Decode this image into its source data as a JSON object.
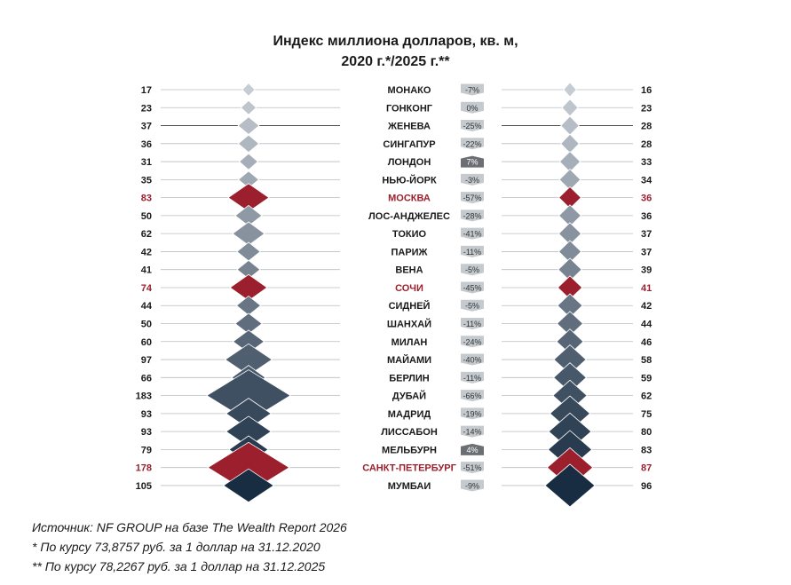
{
  "chart_data": {
    "type": "table",
    "title_line1": "Индекс миллиона долларов, кв. м,",
    "title_line2": "2020 г.*/2025 г.**",
    "highlight_color": "#9b1f2c",
    "rows": [
      {
        "city": "МОНАКО",
        "v2020": 17,
        "v2025": 16,
        "change": "-7%",
        "highlight": false,
        "positive": false
      },
      {
        "city": "ГОНКОНГ",
        "v2020": 23,
        "v2025": 23,
        "change": "0%",
        "highlight": false,
        "positive": false
      },
      {
        "city": "ЖЕНЕВА",
        "v2020": 37,
        "v2025": 28,
        "change": "-25%",
        "highlight": false,
        "positive": false
      },
      {
        "city": "СИНГАПУР",
        "v2020": 36,
        "v2025": 28,
        "change": "-22%",
        "highlight": false,
        "positive": false
      },
      {
        "city": "ЛОНДОН",
        "v2020": 31,
        "v2025": 33,
        "change": "7%",
        "highlight": false,
        "positive": true
      },
      {
        "city": "НЬЮ-ЙОРК",
        "v2020": 35,
        "v2025": 34,
        "change": "-3%",
        "highlight": false,
        "positive": false
      },
      {
        "city": "МОСКВА",
        "v2020": 83,
        "v2025": 36,
        "change": "-57%",
        "highlight": true,
        "positive": false
      },
      {
        "city": "ЛОС-АНДЖЕЛЕС",
        "v2020": 50,
        "v2025": 36,
        "change": "-28%",
        "highlight": false,
        "positive": false
      },
      {
        "city": "ТОКИО",
        "v2020": 62,
        "v2025": 37,
        "change": "-41%",
        "highlight": false,
        "positive": false
      },
      {
        "city": "ПАРИЖ",
        "v2020": 42,
        "v2025": 37,
        "change": "-11%",
        "highlight": false,
        "positive": false
      },
      {
        "city": "ВЕНА",
        "v2020": 41,
        "v2025": 39,
        "change": "-5%",
        "highlight": false,
        "positive": false
      },
      {
        "city": "СОЧИ",
        "v2020": 74,
        "v2025": 41,
        "change": "-45%",
        "highlight": true,
        "positive": false
      },
      {
        "city": "СИДНЕЙ",
        "v2020": 44,
        "v2025": 42,
        "change": "-5%",
        "highlight": false,
        "positive": false
      },
      {
        "city": "ШАНХАЙ",
        "v2020": 50,
        "v2025": 44,
        "change": "-11%",
        "highlight": false,
        "positive": false
      },
      {
        "city": "МИЛАН",
        "v2020": 60,
        "v2025": 46,
        "change": "-24%",
        "highlight": false,
        "positive": false
      },
      {
        "city": "МАЙАМИ",
        "v2020": 97,
        "v2025": 58,
        "change": "-40%",
        "highlight": false,
        "positive": false
      },
      {
        "city": "БЕРЛИН",
        "v2020": 66,
        "v2025": 59,
        "change": "-11%",
        "highlight": false,
        "positive": false
      },
      {
        "city": "ДУБАЙ",
        "v2020": 183,
        "v2025": 62,
        "change": "-66%",
        "highlight": false,
        "positive": false
      },
      {
        "city": "МАДРИД",
        "v2020": 93,
        "v2025": 75,
        "change": "-19%",
        "highlight": false,
        "positive": false
      },
      {
        "city": "ЛИССАБОН",
        "v2020": 93,
        "v2025": 80,
        "change": "-14%",
        "highlight": false,
        "positive": false
      },
      {
        "city": "МЕЛЬБУРН",
        "v2020": 79,
        "v2025": 83,
        "change": "4%",
        "highlight": false,
        "positive": true
      },
      {
        "city": "САНКТ-ПЕТЕРБУРГ",
        "v2020": 178,
        "v2025": 87,
        "change": "-51%",
        "highlight": true,
        "positive": false
      },
      {
        "city": "МУМБАИ",
        "v2020": 105,
        "v2025": 96,
        "change": "-9%",
        "highlight": false,
        "positive": false
      }
    ]
  },
  "footnotes": {
    "source": "Источник: NF GROUP на базе The Wealth Report 2026",
    "note1": "* По курсу 73,8757 руб. за 1 доллар на 31.12.2020",
    "note2": "** По курсу 78,2267 руб. за 1 доллар на 31.12.2025"
  }
}
